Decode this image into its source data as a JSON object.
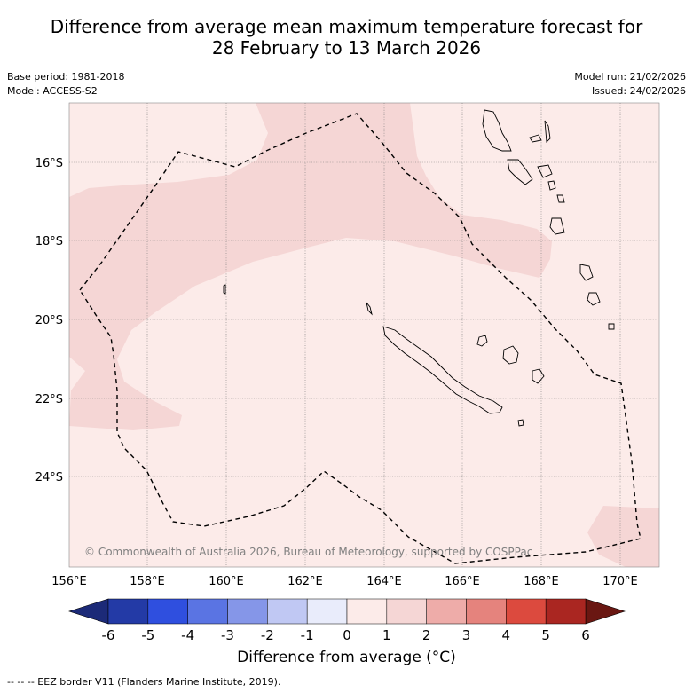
{
  "title": {
    "line1": "Difference from average mean maximum temperature forecast for",
    "line2": "28 February to 13 March 2026"
  },
  "meta": {
    "base_period": "Base period: 1981-2018",
    "model": "Model: ACCESS-S2",
    "model_run": "Model run: 21/02/2026",
    "issued": "Issued: 24/02/2026"
  },
  "map": {
    "lat_labels": [
      "16°S",
      "18°S",
      "20°S",
      "22°S",
      "24°S"
    ],
    "lon_labels": [
      "156°E",
      "158°E",
      "160°E",
      "162°E",
      "164°E",
      "166°E",
      "168°E",
      "170°E"
    ],
    "copyright": "© Commonwealth of Australia 2026, Bureau of Meteorology, supported by COSPPac",
    "anomaly_colors": {
      "0_to_1": "#fcebe9",
      "1_to_2": "#f5d6d5"
    }
  },
  "colorbar": {
    "labels": [
      "-6",
      "-5",
      "-4",
      "-3",
      "-2",
      "-1",
      "0",
      "1",
      "2",
      "3",
      "4",
      "5",
      "6"
    ],
    "colors": [
      "#233aa6",
      "#2f4fdf",
      "#5a74e3",
      "#8596e8",
      "#c0c8f3",
      "#e9ecfb",
      "#fcebe9",
      "#f5d6d5",
      "#eeaca9",
      "#e5837d",
      "#dc4a3e",
      "#aa2621"
    ],
    "under_color": "#1c2a78",
    "over_color": "#6a1712",
    "title": "Difference from average (°C)"
  },
  "legend_note": "--  --  -- EEZ border V11 (Flanders Marine Institute, 2019)."
}
